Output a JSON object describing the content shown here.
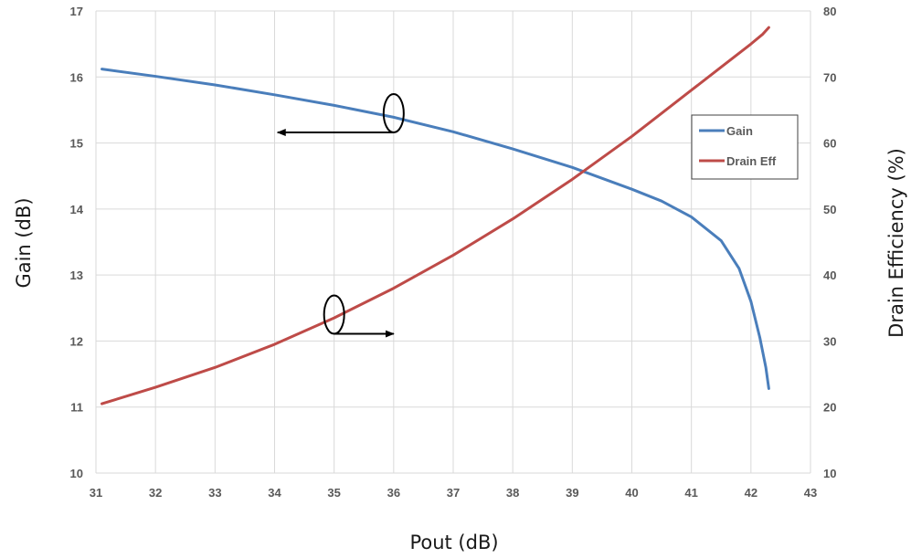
{
  "chart_data": {
    "type": "line",
    "title": "",
    "xlabel": "Pout (dB)",
    "ylabel": "Gain (dB)",
    "y2label": "Drain Efficiency (%)",
    "xlim": [
      31,
      43
    ],
    "ylim": [
      10,
      17
    ],
    "y2lim": [
      10,
      80
    ],
    "x_ticks": [
      "31",
      "32",
      "33",
      "34",
      "35",
      "36",
      "37",
      "38",
      "39",
      "40",
      "41",
      "42",
      "43"
    ],
    "y_ticks": [
      "10",
      "11",
      "12",
      "13",
      "14",
      "15",
      "16",
      "17"
    ],
    "y2_ticks": [
      "10",
      "20",
      "30",
      "40",
      "50",
      "60",
      "70",
      "80"
    ],
    "grid": true,
    "legend_position": "right",
    "series": [
      {
        "name": "Gain",
        "axis": "left",
        "color": "#4a7ebb",
        "x": [
          31.1,
          32,
          33,
          34,
          35,
          36,
          37,
          38,
          39,
          40,
          40.5,
          41,
          41.5,
          41.8,
          42,
          42.15,
          42.25,
          42.3
        ],
        "y": [
          16.12,
          16.01,
          15.88,
          15.73,
          15.57,
          15.39,
          15.17,
          14.91,
          14.63,
          14.3,
          14.12,
          13.88,
          13.52,
          13.1,
          12.6,
          12.05,
          11.6,
          11.28
        ]
      },
      {
        "name": "Drain Eff",
        "axis": "right",
        "color": "#be4b48",
        "x": [
          31.1,
          32,
          33,
          34,
          35,
          36,
          37,
          38,
          39,
          40,
          41,
          41.5,
          42,
          42.2,
          42.3
        ],
        "y": [
          20.5,
          23,
          26,
          29.5,
          33.5,
          38,
          43,
          48.5,
          54.5,
          61,
          68,
          71.5,
          75,
          76.5,
          77.5
        ]
      }
    ],
    "annotations": [
      {
        "x": 36,
        "y": 15.45,
        "axis": "left",
        "arrow": "left",
        "arrow_to_x": 34.05
      },
      {
        "x": 35,
        "y": 12.4,
        "axis": "left",
        "arrow": "right",
        "arrow_to_x": 36
      }
    ]
  }
}
